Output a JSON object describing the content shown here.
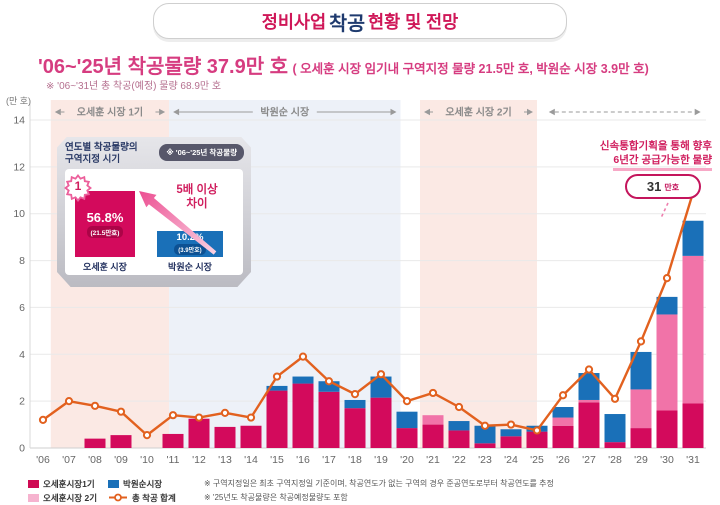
{
  "title": {
    "part1": "정비사업",
    "part2": "착공",
    "part3": "현황 및 전망"
  },
  "subtitle": {
    "main": "'06~'25년 착공물량 37.9만 호",
    "paren": "( 오세훈 시장 임기내 구역지정 물량 21.5만 호, 박원순 시장 3.9만 호)",
    "note": "※ '06~'31년 총 착공(예정) 물량 68.9만 호"
  },
  "annotation": {
    "line1": "신속통합기획을 통해 향후",
    "line2": "6년간 공급가능한 물량",
    "badge_value": "31",
    "badge_unit": "만호"
  },
  "inset": {
    "header_line1": "연도별 착공물량의",
    "header_line2": "구역지정 시기",
    "tag": "※ '06~'25년 착공물량",
    "bars": [
      {
        "rank": "1",
        "value": "56.8%",
        "sub": "(21.5만호)",
        "label": "오세훈 시장",
        "color": "#d30a5c"
      },
      {
        "value": "10.2%",
        "sub": "(3.9만호)",
        "label": "박원순 시장",
        "color": "#1a70b8"
      }
    ],
    "arrow_line1": "5배 이상",
    "arrow_line2": "차이"
  },
  "chart_data": {
    "type": "bar",
    "subtype": "stacked-bars-with-total-line",
    "unit_label": "(만 호)",
    "categories": [
      "'06",
      "'07",
      "'08",
      "'09",
      "'10",
      "'11",
      "'12",
      "'13",
      "'14",
      "'15",
      "'16",
      "'17",
      "'18",
      "'19",
      "'20",
      "'21",
      "'22",
      "'23",
      "'24",
      "'25",
      "'26",
      "'27",
      "'28",
      "'29",
      "'30",
      "'31"
    ],
    "ylim": [
      0,
      14
    ],
    "yticks": [
      0,
      2,
      4,
      6,
      8,
      10,
      12,
      14
    ],
    "series": [
      {
        "name": "오세훈시장1기",
        "color": "#d30a5c",
        "values": [
          0,
          0,
          0.4,
          0.55,
          0,
          0.6,
          1.25,
          0.9,
          0.95,
          2.45,
          2.75,
          2.4,
          1.7,
          2.15,
          0.85,
          1.0,
          0.75,
          0.2,
          0.5,
          0.7,
          0.95,
          1.95,
          0.25,
          0.85,
          1.6,
          1.9
        ]
      },
      {
        "name": "오세훈시장 2기",
        "color": "#f173a8",
        "values": [
          0,
          0,
          0,
          0,
          0,
          0,
          0,
          0,
          0,
          0,
          0,
          0,
          0,
          0,
          0,
          0.4,
          0,
          0,
          0,
          0,
          0.35,
          0.1,
          0,
          1.65,
          4.1,
          6.3
        ]
      },
      {
        "name": "박원순시장",
        "color": "#1a70b8",
        "values": [
          0,
          0,
          0,
          0,
          0,
          0,
          0,
          0,
          0,
          0.2,
          0.3,
          0.45,
          0.35,
          0.9,
          0.7,
          0,
          0.4,
          0.75,
          0.3,
          0.25,
          0.45,
          1.15,
          1.2,
          1.6,
          0.75,
          1.5
        ]
      }
    ],
    "line": {
      "name": "총 착공 합계",
      "color": "#e2611f",
      "values": [
        1.2,
        2.0,
        1.8,
        1.55,
        0.55,
        1.4,
        1.3,
        1.5,
        1.3,
        3.05,
        3.9,
        2.85,
        2.3,
        3.15,
        2.0,
        2.35,
        1.75,
        0.95,
        1.0,
        0.75,
        2.25,
        3.35,
        2.1,
        4.55,
        7.25,
        10.9
      ],
      "marker_last_index": 24
    },
    "bands": [
      {
        "label": "오세훈 시장 1기",
        "from": 0.3,
        "to": 4.85,
        "color": "#fbe9e4",
        "style": "solid"
      },
      {
        "label": "박원순 시장",
        "from": 4.85,
        "to": 13.75,
        "color": "#edf1f8",
        "style": "solid"
      },
      {
        "label": "오세훈 시장 2기",
        "from": 14.5,
        "to": 19.0,
        "color": "#fbe9e4",
        "style": "solid"
      },
      {
        "label": "",
        "from": 19.3,
        "to": 25.45,
        "color": "none",
        "style": "dashed"
      }
    ]
  },
  "legend": {
    "items": [
      {
        "label": "오세훈시장1기",
        "swatch": "#cf0a53",
        "type": "rect"
      },
      {
        "label": "박원순시장",
        "swatch": "#1a70b8",
        "type": "rect"
      },
      {
        "label": "오세훈시장 2기",
        "swatch": "#f6b3cf",
        "type": "rect"
      },
      {
        "label": "총 착공 합계",
        "swatch": "#e2611f",
        "type": "line"
      }
    ]
  },
  "footnotes": [
    "※ 구역지정일은 최초 구역지정일 기준이며, 착공연도가 없는 구역의 경우 준공연도로부터 착공연도를 추정",
    "※ '25년도 착공물량은 착공예정물량도 포함"
  ]
}
